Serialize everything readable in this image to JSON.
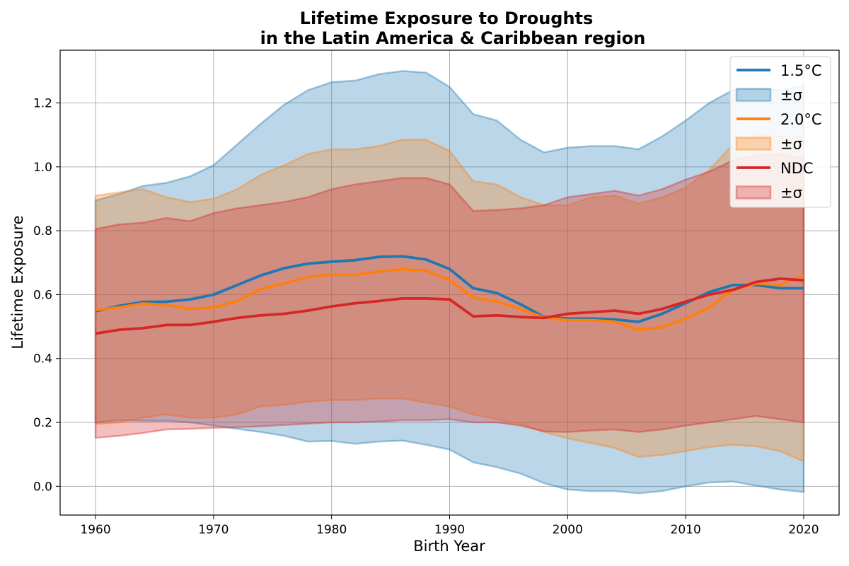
{
  "chart_data": {
    "type": "line",
    "title_line1": "Lifetime Exposure to Droughts",
    "title_line2": "in the Latin America & Caribbean region",
    "xlabel": "Birth Year",
    "ylabel": "Lifetime Exposure",
    "xlim": [
      1957,
      2023
    ],
    "ylim": [
      -0.09,
      1.365
    ],
    "xticks": [
      1960,
      1970,
      1980,
      1990,
      2000,
      2010,
      2020
    ],
    "yticks": [
      0.0,
      0.2,
      0.4,
      0.6,
      0.8,
      1.0,
      1.2
    ],
    "ytick_labels": [
      "0.0",
      "0.2",
      "0.4",
      "0.6",
      "0.8",
      "1.0",
      "1.2"
    ],
    "grid": true,
    "legend_position": "upper right",
    "x": [
      1960,
      1962,
      1964,
      1966,
      1968,
      1970,
      1972,
      1974,
      1976,
      1978,
      1980,
      1982,
      1984,
      1986,
      1988,
      1990,
      1992,
      1994,
      1996,
      1998,
      2000,
      2002,
      2004,
      2006,
      2008,
      2010,
      2012,
      2014,
      2016,
      2018,
      2020
    ],
    "series": [
      {
        "name": "1.5°C",
        "band_label": "±σ",
        "color": "#1f77b4",
        "mean": [
          0.548,
          0.565,
          0.577,
          0.578,
          0.585,
          0.6,
          0.63,
          0.66,
          0.683,
          0.697,
          0.703,
          0.708,
          0.718,
          0.72,
          0.71,
          0.68,
          0.62,
          0.605,
          0.57,
          0.53,
          0.525,
          0.525,
          0.522,
          0.515,
          0.54,
          0.573,
          0.608,
          0.63,
          0.63,
          0.62,
          0.62
        ],
        "upper": [
          0.895,
          0.915,
          0.94,
          0.95,
          0.97,
          1.005,
          1.07,
          1.135,
          1.195,
          1.24,
          1.265,
          1.27,
          1.29,
          1.3,
          1.295,
          1.25,
          1.165,
          1.145,
          1.085,
          1.045,
          1.06,
          1.065,
          1.065,
          1.055,
          1.095,
          1.145,
          1.2,
          1.24,
          1.245,
          1.24,
          1.255
        ],
        "lower": [
          0.2,
          0.207,
          0.205,
          0.205,
          0.2,
          0.19,
          0.18,
          0.17,
          0.158,
          0.14,
          0.142,
          0.133,
          0.14,
          0.143,
          0.13,
          0.115,
          0.075,
          0.06,
          0.04,
          0.01,
          -0.01,
          -0.015,
          -0.015,
          -0.022,
          -0.015,
          0.0,
          0.012,
          0.015,
          0.002,
          -0.01,
          -0.018
        ]
      },
      {
        "name": "2.0°C",
        "band_label": "±σ",
        "color": "#ff7f0e",
        "mean": [
          0.552,
          0.56,
          0.572,
          0.568,
          0.555,
          0.56,
          0.58,
          0.617,
          0.635,
          0.655,
          0.663,
          0.662,
          0.672,
          0.68,
          0.675,
          0.645,
          0.59,
          0.578,
          0.555,
          0.528,
          0.52,
          0.52,
          0.515,
          0.49,
          0.498,
          0.525,
          0.56,
          0.615,
          0.635,
          0.63,
          0.66
        ],
        "upper": [
          0.91,
          0.92,
          0.93,
          0.905,
          0.89,
          0.9,
          0.93,
          0.975,
          1.005,
          1.04,
          1.055,
          1.055,
          1.065,
          1.085,
          1.085,
          1.05,
          0.955,
          0.945,
          0.905,
          0.88,
          0.88,
          0.905,
          0.91,
          0.885,
          0.905,
          0.935,
          0.99,
          1.07,
          1.1,
          1.095,
          1.095
        ],
        "lower": [
          0.195,
          0.2,
          0.215,
          0.225,
          0.215,
          0.215,
          0.225,
          0.25,
          0.255,
          0.265,
          0.27,
          0.27,
          0.275,
          0.275,
          0.262,
          0.25,
          0.225,
          0.21,
          0.195,
          0.17,
          0.15,
          0.135,
          0.12,
          0.092,
          0.098,
          0.11,
          0.123,
          0.13,
          0.125,
          0.11,
          0.078
        ]
      },
      {
        "name": "NDC",
        "band_label": "±σ",
        "color": "#d62728",
        "mean": [
          0.478,
          0.49,
          0.495,
          0.505,
          0.505,
          0.515,
          0.527,
          0.535,
          0.54,
          0.55,
          0.563,
          0.573,
          0.58,
          0.588,
          0.588,
          0.585,
          0.532,
          0.535,
          0.53,
          0.527,
          0.54,
          0.545,
          0.55,
          0.54,
          0.555,
          0.578,
          0.6,
          0.615,
          0.64,
          0.65,
          0.645
        ],
        "upper": [
          0.805,
          0.82,
          0.825,
          0.84,
          0.83,
          0.855,
          0.87,
          0.88,
          0.89,
          0.905,
          0.93,
          0.945,
          0.955,
          0.965,
          0.965,
          0.945,
          0.862,
          0.865,
          0.87,
          0.88,
          0.905,
          0.915,
          0.925,
          0.91,
          0.93,
          0.96,
          0.985,
          1.02,
          1.035,
          1.04,
          1.025
        ],
        "lower": [
          0.152,
          0.158,
          0.167,
          0.178,
          0.18,
          0.183,
          0.185,
          0.188,
          0.192,
          0.196,
          0.2,
          0.2,
          0.203,
          0.207,
          0.207,
          0.21,
          0.2,
          0.2,
          0.19,
          0.172,
          0.17,
          0.175,
          0.178,
          0.17,
          0.178,
          0.19,
          0.2,
          0.21,
          0.22,
          0.21,
          0.2
        ]
      }
    ]
  }
}
